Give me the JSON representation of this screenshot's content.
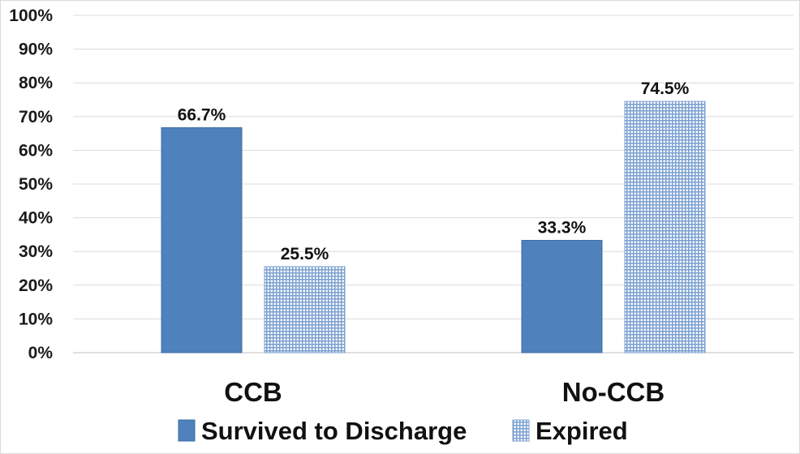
{
  "chart_data": {
    "type": "bar",
    "categories": [
      "CCB",
      "No-CCB"
    ],
    "series": [
      {
        "name": "Survived to Discharge",
        "values": [
          66.7,
          33.3
        ],
        "labels": [
          "66.7%",
          "33.3%"
        ],
        "color": "#4F81BD",
        "pattern": "solid"
      },
      {
        "name": "Expired",
        "values": [
          25.5,
          74.5
        ],
        "labels": [
          "25.5%",
          "74.5%"
        ],
        "color": "#7A9FD0",
        "pattern": "grid"
      }
    ],
    "y_ticks": [
      "0%",
      "10%",
      "20%",
      "30%",
      "40%",
      "50%",
      "60%",
      "70%",
      "80%",
      "90%",
      "100%"
    ],
    "ylim": [
      0,
      100
    ],
    "grid": true,
    "legend_position": "bottom",
    "title": "",
    "xlabel": "",
    "ylabel": ""
  }
}
